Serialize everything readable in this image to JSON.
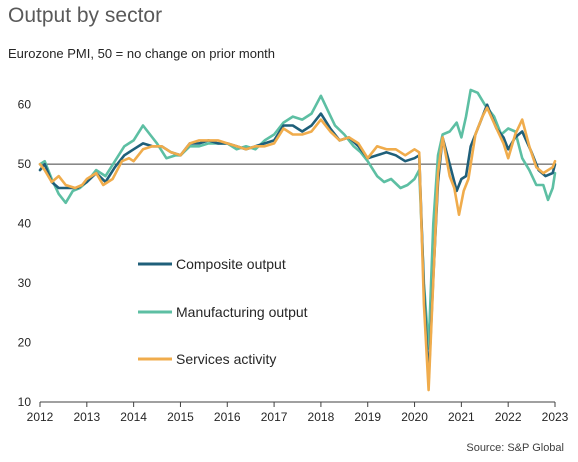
{
  "title": "Output by sector",
  "subtitle": "Eurozone PMI, 50 = no change on prior month",
  "source": "Source: S&P Global",
  "chart_data": {
    "type": "line",
    "title": "Output by sector",
    "subtitle": "Eurozone PMI, 50 = no change on prior month",
    "ylim": [
      10,
      65
    ],
    "yticks": [
      10,
      20,
      30,
      40,
      50,
      60
    ],
    "xlim": [
      2012,
      2023
    ],
    "xticks": [
      "2012",
      "2013",
      "2014",
      "2015",
      "2016",
      "2017",
      "2018",
      "2019",
      "2020",
      "2021",
      "2022",
      "2023"
    ],
    "reference_line": 50,
    "grid": false,
    "legend_position": "center-left",
    "series": [
      {
        "name": "Composite output",
        "color": "#1f5f7a",
        "points": [
          [
            2012.0,
            49.0
          ],
          [
            2012.1,
            50.0
          ],
          [
            2012.25,
            47.0
          ],
          [
            2012.4,
            46.0
          ],
          [
            2012.6,
            46.0
          ],
          [
            2012.8,
            46.0
          ],
          [
            2013.0,
            47.0
          ],
          [
            2013.2,
            48.5
          ],
          [
            2013.4,
            47.0
          ],
          [
            2013.6,
            49.5
          ],
          [
            2013.8,
            51.5
          ],
          [
            2014.0,
            52.5
          ],
          [
            2014.2,
            53.5
          ],
          [
            2014.4,
            53.0
          ],
          [
            2014.6,
            53.0
          ],
          [
            2014.8,
            52.0
          ],
          [
            2015.0,
            51.5
          ],
          [
            2015.2,
            53.5
          ],
          [
            2015.4,
            53.5
          ],
          [
            2015.6,
            54.0
          ],
          [
            2015.8,
            53.5
          ],
          [
            2016.0,
            53.5
          ],
          [
            2016.2,
            53.0
          ],
          [
            2016.4,
            52.5
          ],
          [
            2016.6,
            53.0
          ],
          [
            2016.8,
            53.5
          ],
          [
            2017.0,
            54.0
          ],
          [
            2017.2,
            56.5
          ],
          [
            2017.4,
            56.5
          ],
          [
            2017.6,
            55.5
          ],
          [
            2017.8,
            56.5
          ],
          [
            2018.0,
            58.5
          ],
          [
            2018.2,
            56.0
          ],
          [
            2018.4,
            54.0
          ],
          [
            2018.6,
            54.5
          ],
          [
            2018.8,
            53.0
          ],
          [
            2019.0,
            51.0
          ],
          [
            2019.2,
            51.5
          ],
          [
            2019.4,
            52.0
          ],
          [
            2019.6,
            51.5
          ],
          [
            2019.8,
            50.5
          ],
          [
            2020.0,
            51.0
          ],
          [
            2020.1,
            51.5
          ],
          [
            2020.2,
            29.0
          ],
          [
            2020.3,
            13.5
          ],
          [
            2020.4,
            31.0
          ],
          [
            2020.5,
            47.0
          ],
          [
            2020.6,
            54.5
          ],
          [
            2020.75,
            50.0
          ],
          [
            2020.9,
            45.5
          ],
          [
            2021.0,
            47.5
          ],
          [
            2021.1,
            48.0
          ],
          [
            2021.2,
            53.0
          ],
          [
            2021.4,
            57.0
          ],
          [
            2021.55,
            60.0
          ],
          [
            2021.75,
            56.0
          ],
          [
            2021.9,
            54.5
          ],
          [
            2022.0,
            52.5
          ],
          [
            2022.15,
            54.5
          ],
          [
            2022.3,
            55.5
          ],
          [
            2022.5,
            52.0
          ],
          [
            2022.65,
            49.0
          ],
          [
            2022.8,
            48.0
          ],
          [
            2022.95,
            48.5
          ],
          [
            2023.0,
            50.0
          ]
        ]
      },
      {
        "name": "Manufacturing output",
        "color": "#5dbfa3",
        "points": [
          [
            2012.0,
            50.0
          ],
          [
            2012.1,
            50.5
          ],
          [
            2012.25,
            47.5
          ],
          [
            2012.4,
            45.0
          ],
          [
            2012.55,
            43.5
          ],
          [
            2012.7,
            45.5
          ],
          [
            2012.85,
            46.0
          ],
          [
            2013.0,
            47.0
          ],
          [
            2013.2,
            49.0
          ],
          [
            2013.4,
            48.0
          ],
          [
            2013.6,
            50.5
          ],
          [
            2013.8,
            53.0
          ],
          [
            2014.0,
            54.0
          ],
          [
            2014.2,
            56.5
          ],
          [
            2014.35,
            55.0
          ],
          [
            2014.5,
            53.5
          ],
          [
            2014.7,
            51.0
          ],
          [
            2014.9,
            51.5
          ],
          [
            2015.0,
            51.5
          ],
          [
            2015.2,
            53.0
          ],
          [
            2015.4,
            53.0
          ],
          [
            2015.6,
            53.5
          ],
          [
            2015.8,
            53.5
          ],
          [
            2016.0,
            53.5
          ],
          [
            2016.2,
            52.5
          ],
          [
            2016.4,
            53.0
          ],
          [
            2016.6,
            52.5
          ],
          [
            2016.8,
            54.0
          ],
          [
            2017.0,
            55.0
          ],
          [
            2017.2,
            57.0
          ],
          [
            2017.4,
            58.0
          ],
          [
            2017.6,
            57.5
          ],
          [
            2017.8,
            58.5
          ],
          [
            2018.0,
            61.5
          ],
          [
            2018.15,
            59.0
          ],
          [
            2018.3,
            56.5
          ],
          [
            2018.5,
            55.0
          ],
          [
            2018.7,
            53.0
          ],
          [
            2018.85,
            52.0
          ],
          [
            2019.0,
            50.5
          ],
          [
            2019.2,
            48.0
          ],
          [
            2019.35,
            47.0
          ],
          [
            2019.5,
            47.5
          ],
          [
            2019.7,
            46.0
          ],
          [
            2019.85,
            46.5
          ],
          [
            2020.0,
            47.5
          ],
          [
            2020.1,
            49.0
          ],
          [
            2020.2,
            30.0
          ],
          [
            2020.3,
            19.0
          ],
          [
            2020.4,
            40.0
          ],
          [
            2020.5,
            51.5
          ],
          [
            2020.6,
            55.0
          ],
          [
            2020.75,
            55.5
          ],
          [
            2020.9,
            57.0
          ],
          [
            2021.0,
            54.5
          ],
          [
            2021.1,
            58.0
          ],
          [
            2021.2,
            62.5
          ],
          [
            2021.35,
            62.0
          ],
          [
            2021.5,
            60.0
          ],
          [
            2021.7,
            58.0
          ],
          [
            2021.85,
            55.0
          ],
          [
            2022.0,
            56.0
          ],
          [
            2022.15,
            55.5
          ],
          [
            2022.3,
            51.0
          ],
          [
            2022.45,
            49.0
          ],
          [
            2022.6,
            46.5
          ],
          [
            2022.75,
            46.5
          ],
          [
            2022.85,
            44.0
          ],
          [
            2022.95,
            46.0
          ],
          [
            2023.0,
            48.5
          ]
        ]
      },
      {
        "name": "Services activity",
        "color": "#f0ac4c",
        "points": [
          [
            2012.0,
            50.0
          ],
          [
            2012.1,
            49.0
          ],
          [
            2012.25,
            47.0
          ],
          [
            2012.4,
            48.0
          ],
          [
            2012.55,
            46.5
          ],
          [
            2012.75,
            46.0
          ],
          [
            2012.9,
            46.5
          ],
          [
            2013.0,
            47.5
          ],
          [
            2013.2,
            48.5
          ],
          [
            2013.35,
            46.5
          ],
          [
            2013.55,
            47.5
          ],
          [
            2013.75,
            50.5
          ],
          [
            2013.9,
            51.0
          ],
          [
            2014.0,
            50.5
          ],
          [
            2014.2,
            52.5
          ],
          [
            2014.4,
            53.0
          ],
          [
            2014.6,
            53.0
          ],
          [
            2014.8,
            52.0
          ],
          [
            2015.0,
            51.5
          ],
          [
            2015.2,
            53.5
          ],
          [
            2015.4,
            54.0
          ],
          [
            2015.6,
            54.0
          ],
          [
            2015.8,
            54.0
          ],
          [
            2016.0,
            53.5
          ],
          [
            2016.2,
            53.0
          ],
          [
            2016.4,
            52.5
          ],
          [
            2016.6,
            53.0
          ],
          [
            2016.8,
            53.0
          ],
          [
            2017.0,
            53.5
          ],
          [
            2017.2,
            56.0
          ],
          [
            2017.4,
            55.0
          ],
          [
            2017.6,
            55.0
          ],
          [
            2017.8,
            55.5
          ],
          [
            2018.0,
            57.5
          ],
          [
            2018.2,
            55.5
          ],
          [
            2018.4,
            54.0
          ],
          [
            2018.6,
            54.5
          ],
          [
            2018.8,
            53.5
          ],
          [
            2019.0,
            51.0
          ],
          [
            2019.2,
            53.0
          ],
          [
            2019.4,
            52.5
          ],
          [
            2019.6,
            52.5
          ],
          [
            2019.8,
            51.5
          ],
          [
            2020.0,
            52.5
          ],
          [
            2020.1,
            52.0
          ],
          [
            2020.2,
            26.5
          ],
          [
            2020.3,
            12.0
          ],
          [
            2020.4,
            30.5
          ],
          [
            2020.5,
            48.5
          ],
          [
            2020.6,
            54.5
          ],
          [
            2020.75,
            48.0
          ],
          [
            2020.85,
            46.0
          ],
          [
            2020.95,
            41.5
          ],
          [
            2021.05,
            45.5
          ],
          [
            2021.15,
            47.5
          ],
          [
            2021.3,
            55.0
          ],
          [
            2021.45,
            58.0
          ],
          [
            2021.55,
            59.5
          ],
          [
            2021.75,
            56.0
          ],
          [
            2021.9,
            53.5
          ],
          [
            2022.0,
            51.0
          ],
          [
            2022.15,
            55.0
          ],
          [
            2022.3,
            57.5
          ],
          [
            2022.45,
            53.0
          ],
          [
            2022.6,
            49.5
          ],
          [
            2022.75,
            48.5
          ],
          [
            2022.95,
            49.5
          ],
          [
            2023.0,
            50.5
          ]
        ]
      }
    ]
  }
}
